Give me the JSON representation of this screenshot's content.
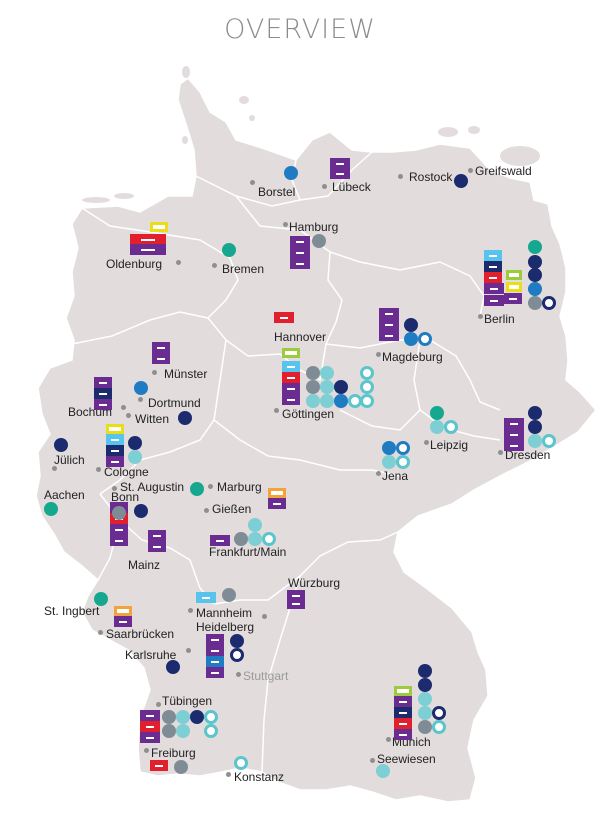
{
  "title": "OVERVIEW",
  "colors": {
    "purple": "#6a2c91",
    "navy": "#1c2a6e",
    "blue": "#1f7bc2",
    "light_blue": "#56c4ec",
    "teal": "#15a88e",
    "light_teal": "#7dcfd4",
    "grey": "#7f8c96",
    "red": "#e2202d",
    "yellow": "#e8de1a",
    "orange": "#f3a33a",
    "lime": "#9ccb3b",
    "land": "#e2dcdd",
    "border": "#ffffff"
  },
  "cities": [
    {
      "name": "Rostock",
      "style": "normal"
    },
    {
      "name": "Greifswald",
      "style": "normal"
    },
    {
      "name": "Borstel",
      "style": "normal"
    },
    {
      "name": "Lübeck",
      "style": "normal"
    },
    {
      "name": "Hamburg",
      "style": "normal"
    },
    {
      "name": "Oldenburg",
      "style": "normal"
    },
    {
      "name": "Bremen",
      "style": "normal"
    },
    {
      "name": "Berlin",
      "style": "normal"
    },
    {
      "name": "Hannover",
      "style": "normal"
    },
    {
      "name": "Magdeburg",
      "style": "normal"
    },
    {
      "name": "Münster",
      "style": "normal"
    },
    {
      "name": "Dortmund",
      "style": "normal"
    },
    {
      "name": "Bochum",
      "style": "normal"
    },
    {
      "name": "Witten",
      "style": "normal"
    },
    {
      "name": "Göttingen",
      "style": "normal"
    },
    {
      "name": "Leipzig",
      "style": "normal"
    },
    {
      "name": "Dresden",
      "style": "normal"
    },
    {
      "name": "Jülich",
      "style": "normal"
    },
    {
      "name": "Cologne",
      "style": "normal"
    },
    {
      "name": "Jena",
      "style": "normal"
    },
    {
      "name": "St. Augustin",
      "style": "normal"
    },
    {
      "name": "Marburg",
      "style": "normal"
    },
    {
      "name": "Aachen",
      "style": "normal"
    },
    {
      "name": "Bonn",
      "style": "normal"
    },
    {
      "name": "Gießen",
      "style": "normal"
    },
    {
      "name": "Frankfurt/Main",
      "style": "normal"
    },
    {
      "name": "Mainz",
      "style": "normal"
    },
    {
      "name": "Würzburg",
      "style": "normal"
    },
    {
      "name": "St. Ingbert",
      "style": "normal"
    },
    {
      "name": "Saarbrücken",
      "style": "normal"
    },
    {
      "name": "Mannheim",
      "style": "normal"
    },
    {
      "name": "Heidelberg",
      "style": "normal"
    },
    {
      "name": "Karlsruhe",
      "style": "normal"
    },
    {
      "name": "Stuttgart",
      "style": "grey"
    },
    {
      "name": "Tübingen",
      "style": "normal"
    },
    {
      "name": "Munich",
      "style": "normal"
    },
    {
      "name": "Seewiesen",
      "style": "normal"
    },
    {
      "name": "Freiburg",
      "style": "normal"
    },
    {
      "name": "Konstanz",
      "style": "normal"
    }
  ]
}
